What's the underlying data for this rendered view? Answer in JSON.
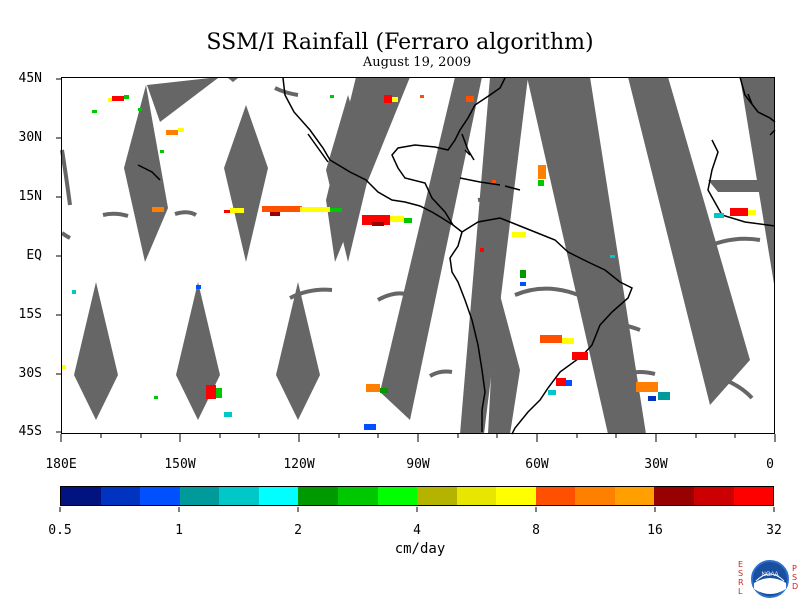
{
  "title": "SSM/I Rainfall (Ferraro algorithm)",
  "subtitle": "August 19, 2009",
  "map": {
    "lat_labels": [
      "45N",
      "30N",
      "15N",
      "EQ",
      "15S",
      "30S",
      "45S"
    ],
    "lon_labels": [
      "180E",
      "150W",
      "120W",
      "90W",
      "60W",
      "30W",
      "0"
    ],
    "swath_gap_color": "#666666",
    "land_outline_color": "#000000"
  },
  "colorbar": {
    "tick_labels": [
      "0.5",
      "1",
      "2",
      "4",
      "8",
      "16",
      "32"
    ],
    "unit": "cm/day",
    "colors": [
      "#00137f",
      "#0033bf",
      "#0050ff",
      "#009a9a",
      "#00c8c8",
      "#00ffff",
      "#009900",
      "#00c800",
      "#00ff00",
      "#b3b300",
      "#e6e600",
      "#ffff00",
      "#ff5000",
      "#ff8000",
      "#ffa000",
      "#990000",
      "#cc0000",
      "#ff0000"
    ]
  },
  "logo": {
    "left_letters": "ESRL",
    "right_letters": "PSD",
    "emblem": "NOAA"
  }
}
